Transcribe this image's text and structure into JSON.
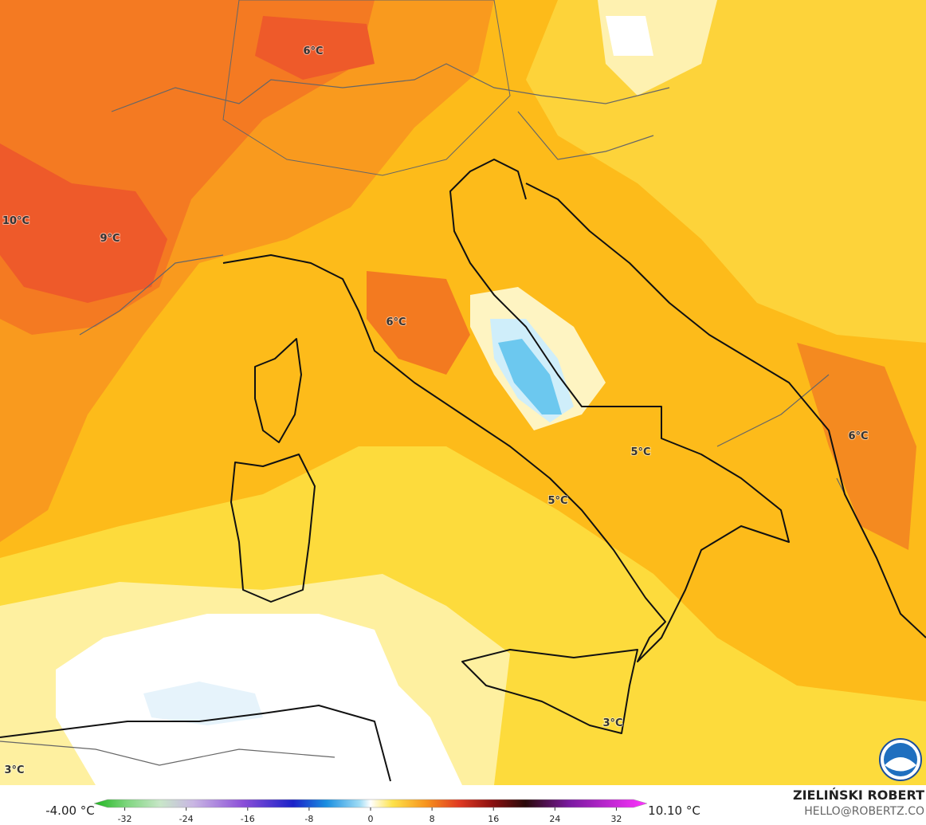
{
  "map": {
    "labels": [
      "6°C",
      "10°C",
      "9°C",
      "6°C",
      "5°C",
      "5°C",
      "6°C",
      "3°C",
      "3°C"
    ]
  },
  "colorbar": {
    "min_label": "-4.00 °C",
    "max_label": "10.10 °C",
    "lim": [
      -36,
      36
    ],
    "ticks": [
      -32,
      -24,
      -16,
      -8,
      0,
      8,
      16,
      24,
      32
    ]
  },
  "credit": {
    "name": "ZIELIŃSKI ROBERT",
    "email": "HELLO@ROBERTZ.CO"
  }
}
